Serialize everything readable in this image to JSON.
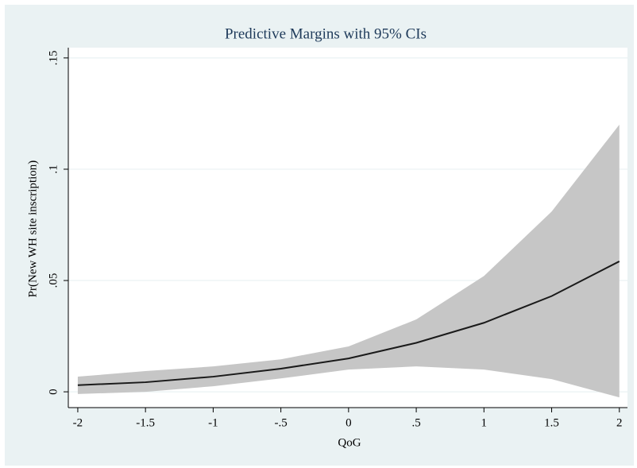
{
  "chart_data": {
    "type": "line",
    "title": "Predictive Margins with 95% CIs",
    "x_label": "QoG",
    "y_label": "Pr(New WH site inscription)",
    "x": [
      -2,
      -1.5,
      -1,
      -0.5,
      0,
      0.5,
      1,
      1.5,
      2
    ],
    "values": [
      0.003,
      0.0043,
      0.0068,
      0.0104,
      0.015,
      0.022,
      0.031,
      0.043,
      0.0586
    ],
    "ci_upper": [
      0.0068,
      0.0093,
      0.0114,
      0.0146,
      0.0204,
      0.0325,
      0.052,
      0.081,
      0.12
    ],
    "ci_lower": [
      -0.001,
      0,
      0.0025,
      0.006,
      0.01,
      0.0114,
      0.01,
      0.0057,
      -0.0025
    ],
    "color": "#1a1a1a",
    "ci_color": "#c6c6c6",
    "xlim": [
      -2.07,
      2.06
    ],
    "ylim": [
      -0.0071,
      0.1546
    ],
    "xticks": [
      -2,
      {
        "value": -1.5,
        "label": "-1.5"
      },
      -1,
      {
        "value": -0.5,
        "label": "-.5"
      },
      0,
      {
        "value": 0.5,
        "label": ".5"
      },
      1,
      1.5,
      2
    ],
    "yticks": [
      0,
      {
        "value": 0.05,
        "label": ".05"
      },
      {
        "value": 0.1,
        "label": ".1"
      },
      {
        "value": 0.15,
        "label": ".15"
      }
    ],
    "grid": true
  }
}
